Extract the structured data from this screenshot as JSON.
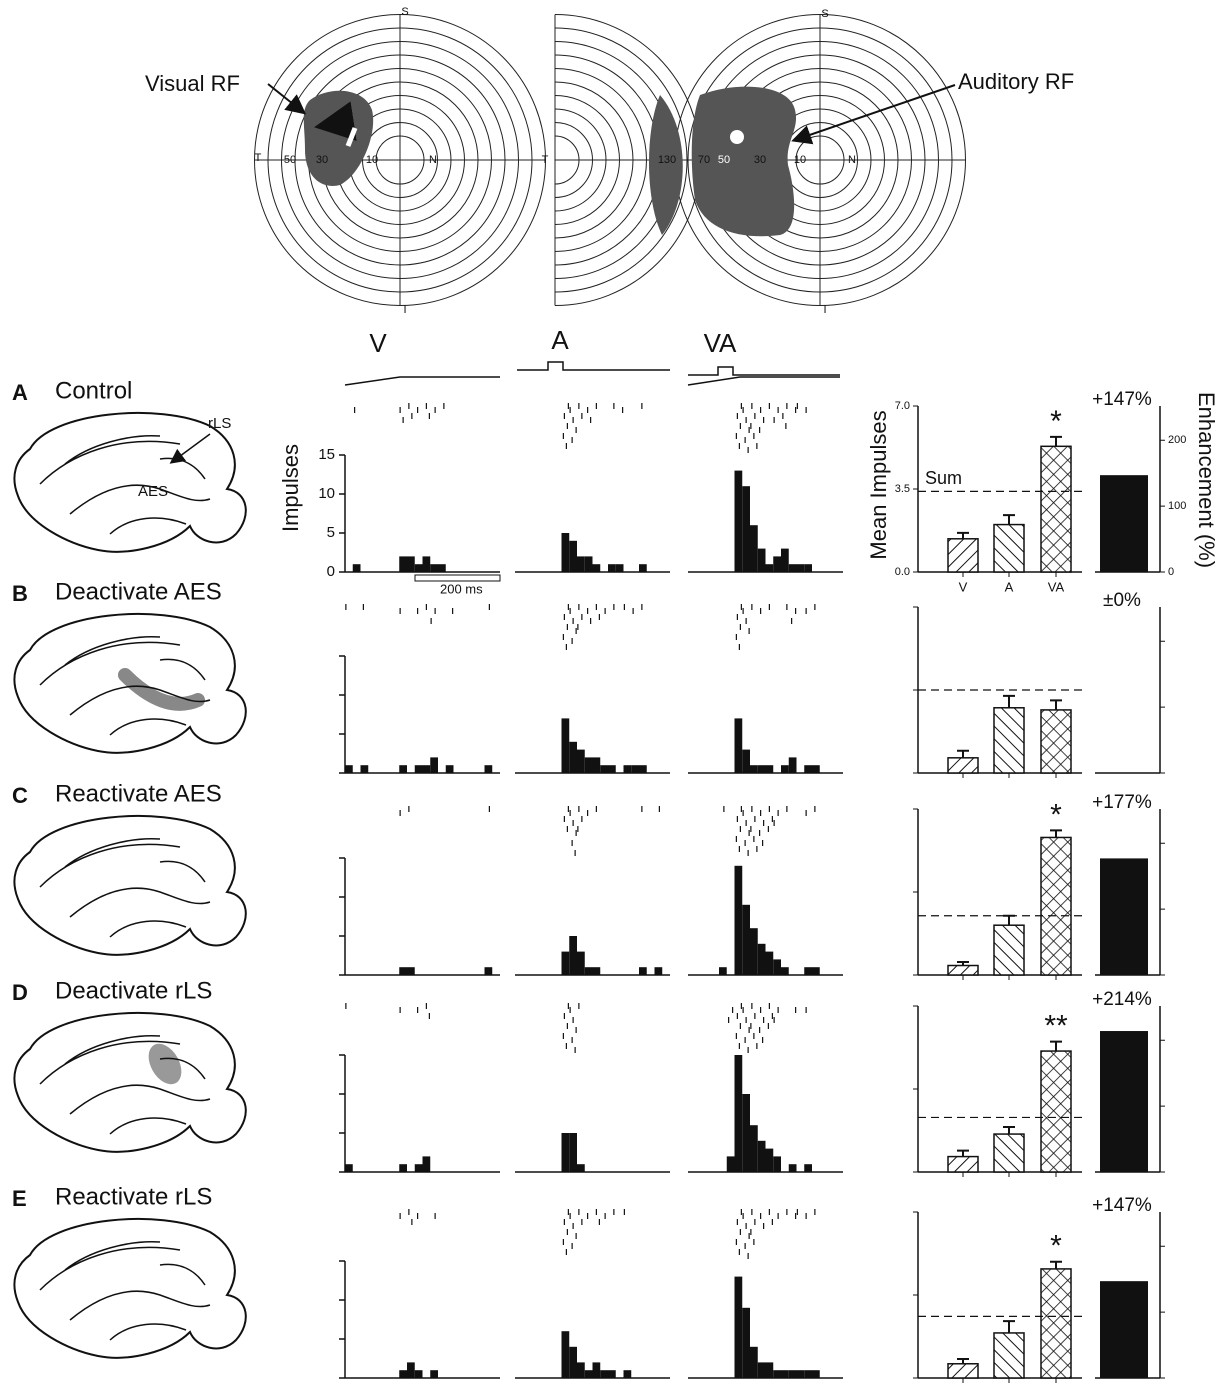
{
  "rf_map": {
    "visual_label": "Visual RF",
    "auditory_label": "Auditory RF",
    "left": {
      "S": "S",
      "I": "I",
      "T": "T",
      "N": "N",
      "eccentricities": [
        "50",
        "30",
        "10"
      ]
    },
    "middle": {
      "T": "T",
      "eccentricities": [
        "130"
      ]
    },
    "right": {
      "S": "S",
      "I": "I",
      "N": "N",
      "eccentricities": [
        "70",
        "50",
        "30",
        "10"
      ]
    }
  },
  "column_headers": [
    "V",
    "A",
    "VA"
  ],
  "scale_bar": "200 ms",
  "histogram_axis": {
    "ylabel": "Impulses",
    "ylim": [
      0,
      15
    ],
    "yticks": [
      0,
      5,
      10,
      15
    ]
  },
  "mean_axis": {
    "ylabel": "Mean Impulses",
    "ylim": [
      0,
      7
    ],
    "yticks": [
      {
        "value": 0,
        "label": "0.0"
      },
      {
        "value": 3.5,
        "label": "3.5"
      },
      {
        "value": 7,
        "label": "7.0"
      }
    ],
    "categories": [
      "V",
      "A",
      "VA"
    ],
    "sum_label": "Sum"
  },
  "enhancement_axis": {
    "ylabel": "Enhancement (%)",
    "ylim": [
      0,
      252
    ],
    "yticks": [
      0,
      100,
      200
    ]
  },
  "chart_data": [
    {
      "type": "panel",
      "letter": "A",
      "title": "Control",
      "brain_labels": [
        "rLS",
        "AES"
      ],
      "histograms": [
        [
          0,
          1,
          0,
          0,
          0,
          0,
          0,
          2,
          2,
          1,
          2,
          1,
          1,
          0,
          0,
          0,
          0,
          0,
          0,
          0
        ],
        [
          0,
          0,
          0,
          0,
          0,
          0,
          5,
          4,
          2,
          2,
          1,
          0,
          1,
          1,
          0,
          0,
          1,
          0,
          0,
          0
        ],
        [
          0,
          0,
          0,
          0,
          0,
          0,
          13,
          11,
          6,
          3,
          1,
          2,
          3,
          1,
          1,
          1,
          0,
          0,
          0,
          0
        ]
      ],
      "means": [
        1.4,
        2.0,
        5.3
      ],
      "errors": [
        0.25,
        0.4,
        0.4
      ],
      "sum": 3.4,
      "significance": "*",
      "enhancement": 147,
      "enhancement_label": "+147%"
    },
    {
      "type": "panel",
      "letter": "B",
      "title": "Deactivate AES",
      "histograms": [
        [
          1,
          0,
          1,
          0,
          0,
          0,
          0,
          1,
          0,
          1,
          1,
          2,
          0,
          1,
          0,
          0,
          0,
          0,
          1,
          0
        ],
        [
          0,
          0,
          0,
          0,
          0,
          0,
          7,
          4,
          3,
          2,
          2,
          1,
          1,
          0,
          1,
          1,
          1,
          0,
          0,
          0
        ],
        [
          0,
          0,
          0,
          0,
          0,
          0,
          7,
          3,
          1,
          1,
          1,
          0,
          1,
          2,
          0,
          1,
          1,
          0,
          0,
          0
        ]
      ],
      "means": [
        0.64,
        2.75,
        2.66
      ],
      "errors": [
        0.3,
        0.5,
        0.4
      ],
      "sum": 3.5,
      "enhancement": 0,
      "enhancement_label": "±0%"
    },
    {
      "type": "panel",
      "letter": "C",
      "title": "Reactivate AES",
      "histograms": [
        [
          0,
          0,
          0,
          0,
          0,
          0,
          0,
          1,
          1,
          0,
          0,
          0,
          0,
          0,
          0,
          0,
          0,
          0,
          1,
          0
        ],
        [
          0,
          0,
          0,
          0,
          0,
          0,
          3,
          5,
          3,
          1,
          1,
          0,
          0,
          0,
          0,
          0,
          1,
          0,
          1,
          0
        ],
        [
          0,
          0,
          0,
          0,
          1,
          0,
          14,
          9,
          6,
          4,
          3,
          2,
          1,
          0,
          0,
          1,
          1,
          0,
          0,
          0
        ]
      ],
      "means": [
        0.4,
        2.1,
        5.8
      ],
      "errors": [
        0.15,
        0.4,
        0.3
      ],
      "sum": 2.5,
      "significance": "*",
      "enhancement": 177,
      "enhancement_label": "+177%"
    },
    {
      "type": "panel",
      "letter": "D",
      "title": "Deactivate rLS",
      "histograms": [
        [
          1,
          0,
          0,
          0,
          0,
          0,
          0,
          1,
          0,
          1,
          2,
          0,
          0,
          0,
          0,
          0,
          0,
          0,
          0,
          0
        ],
        [
          0,
          0,
          0,
          0,
          0,
          0,
          5,
          5,
          1,
          0,
          0,
          0,
          0,
          0,
          0,
          0,
          0,
          0,
          0,
          0
        ],
        [
          0,
          0,
          0,
          0,
          0,
          2,
          15,
          10,
          6,
          4,
          3,
          2,
          0,
          1,
          0,
          1,
          0,
          0,
          0,
          0
        ]
      ],
      "means": [
        0.65,
        1.6,
        5.1
      ],
      "errors": [
        0.25,
        0.3,
        0.4
      ],
      "sum": 2.3,
      "significance": "**",
      "enhancement": 214,
      "enhancement_label": "+214%"
    },
    {
      "type": "panel",
      "letter": "E",
      "title": "Reactivate rLS",
      "histograms": [
        [
          0,
          0,
          0,
          0,
          0,
          0,
          0,
          1,
          2,
          1,
          0,
          1,
          0,
          0,
          0,
          0,
          0,
          0,
          0,
          0
        ],
        [
          0,
          0,
          0,
          0,
          0,
          0,
          6,
          4,
          2,
          1,
          2,
          1,
          1,
          0,
          1,
          0,
          0,
          0,
          0,
          0
        ],
        [
          0,
          0,
          0,
          0,
          0,
          0,
          13,
          9,
          4,
          2,
          2,
          1,
          1,
          1,
          1,
          1,
          1,
          0,
          0,
          0
        ]
      ],
      "means": [
        0.6,
        1.9,
        4.6
      ],
      "errors": [
        0.2,
        0.5,
        0.3
      ],
      "sum": 2.6,
      "significance": "*",
      "enhancement": 147,
      "enhancement_label": "+147%"
    }
  ]
}
